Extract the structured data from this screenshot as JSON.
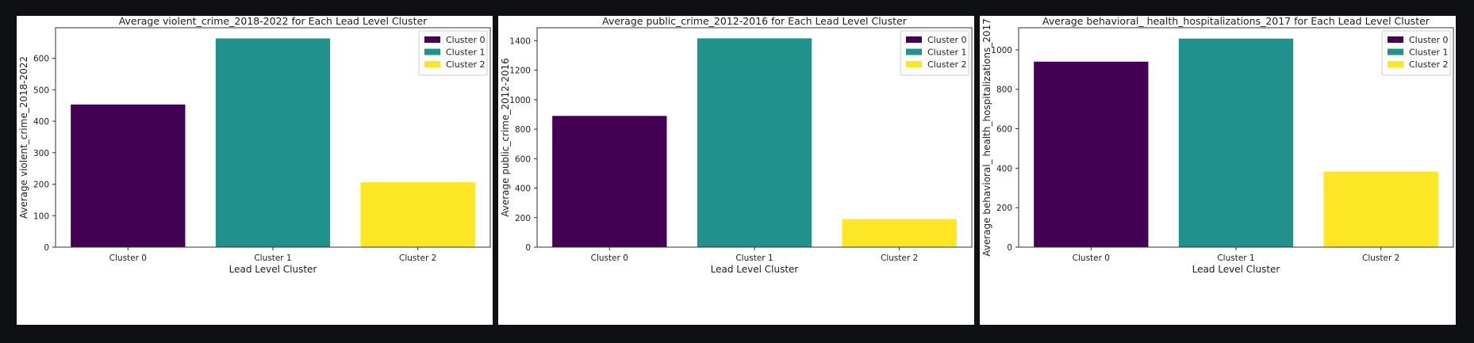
{
  "colors": {
    "cluster0": "#440154",
    "cluster1": "#21918c",
    "cluster2": "#fde725"
  },
  "chart_data": [
    {
      "type": "bar",
      "title": "Average violent_crime_2018-2022 for Each Lead Level Cluster",
      "xlabel": "Lead Level Cluster",
      "ylabel": "Average violent_crime_2018-2022",
      "categories": [
        "Cluster 0",
        "Cluster 1",
        "Cluster 2"
      ],
      "values": [
        453,
        663,
        206
      ],
      "ylim": [
        0,
        697
      ],
      "yticks": [
        0,
        100,
        200,
        300,
        400,
        500,
        600
      ],
      "legend": [
        "Cluster 0",
        "Cluster 1",
        "Cluster 2"
      ],
      "legend_position": "top-right",
      "grid": false
    },
    {
      "type": "bar",
      "title": "Average public_crime_2012-2016 for Each Lead Level Cluster",
      "xlabel": "Lead Level Cluster",
      "ylabel": "Average public_crime_2012-2016",
      "categories": [
        "Cluster 0",
        "Cluster 1",
        "Cluster 2"
      ],
      "values": [
        890,
        1416,
        190
      ],
      "ylim": [
        0,
        1488
      ],
      "yticks": [
        0,
        200,
        400,
        600,
        800,
        1000,
        1200,
        1400
      ],
      "legend": [
        "Cluster 0",
        "Cluster 1",
        "Cluster 2"
      ],
      "legend_position": "top-right",
      "grid": false
    },
    {
      "type": "bar",
      "title": "Average behavioral_ health_hospitalizations_2017 for Each Lead Level Cluster",
      "xlabel": "Lead Level Cluster",
      "ylabel": "Average behavioral_ health_hospitalizations_2017",
      "categories": [
        "Cluster 0",
        "Cluster 1",
        "Cluster 2"
      ],
      "values": [
        940,
        1057,
        383
      ],
      "ylim": [
        0,
        1112
      ],
      "yticks": [
        0,
        200,
        400,
        600,
        800,
        1000
      ],
      "legend": [
        "Cluster 0",
        "Cluster 1",
        "Cluster 2"
      ],
      "legend_position": "top-right",
      "grid": false
    }
  ]
}
